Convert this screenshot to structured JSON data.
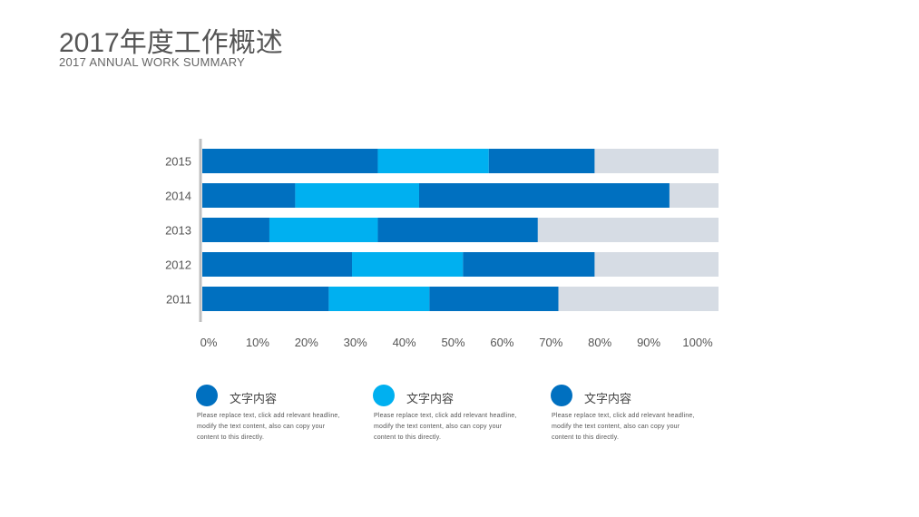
{
  "header": {
    "title": "2017年度工作概述",
    "subtitle": "2017 ANNUAL WORK SUMMARY"
  },
  "chart_data": {
    "type": "bar",
    "orientation": "horizontal",
    "stacked": true,
    "categories": [
      "2015",
      "2014",
      "2013",
      "2012",
      "2011"
    ],
    "series": [
      {
        "color": "#0070c0",
        "values": [
          34,
          18,
          13,
          29,
          24.5
        ]
      },
      {
        "color": "#00b0f0",
        "values": [
          21.5,
          24,
          21,
          21.5,
          19.5
        ]
      },
      {
        "color": "#0070c0",
        "values": [
          20.5,
          48.5,
          31,
          25.5,
          25
        ]
      },
      {
        "color": "#d6dce4",
        "values": [
          24,
          9.5,
          35,
          24,
          31
        ]
      }
    ],
    "xticks": [
      "0%",
      "10%",
      "20%",
      "30%",
      "40%",
      "50%",
      "60%",
      "70%",
      "80%",
      "90%",
      "100%"
    ],
    "xlim": [
      0,
      100
    ],
    "grid": false
  },
  "legend": [
    {
      "color": "#0070c0",
      "title": "文字内容",
      "desc": "Please replace text, click add relevant headline, modify the text content, also can copy your content to this directly."
    },
    {
      "color": "#00b0f0",
      "title": "文字内容",
      "desc": "Please replace text, click add relevant headline, modify the text content, also can copy your content to this directly."
    },
    {
      "color": "#0070c0",
      "title": "文字内容",
      "desc": "Please replace text, click add relevant headline, modify the text content, also can copy your content to this directly."
    }
  ]
}
